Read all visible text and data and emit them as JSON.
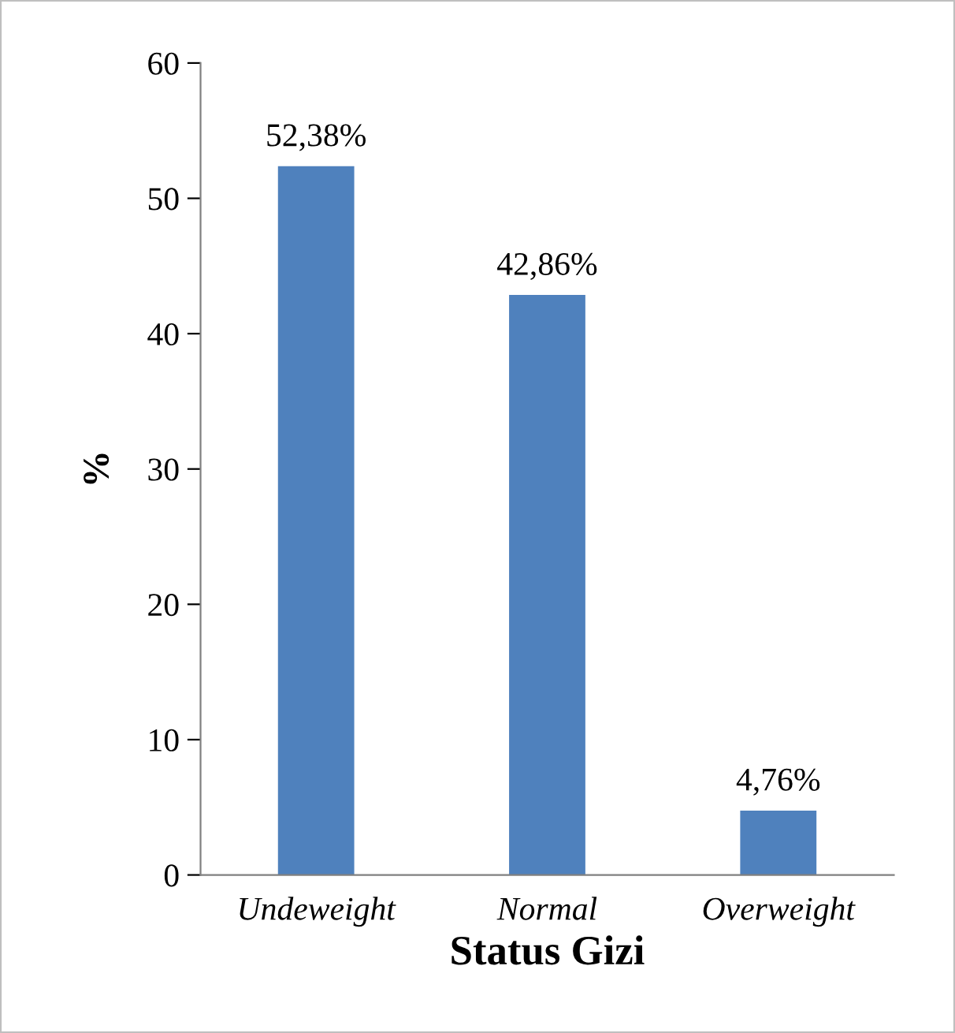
{
  "chart_data": {
    "type": "bar",
    "xlabel": "Status Gizi",
    "ylabel": "%",
    "categories": [
      "Undeweight",
      "Normal",
      "Overweight"
    ],
    "values": [
      52.38,
      42.86,
      4.76
    ],
    "color": "#4f81bd",
    "value_labels": [
      "52,38%",
      "42,86%",
      "4,76%"
    ],
    "ylim": [
      0,
      60
    ],
    "yticks": [
      0,
      10,
      20,
      30,
      40,
      50,
      60
    ],
    "grid": false,
    "legend": false
  }
}
